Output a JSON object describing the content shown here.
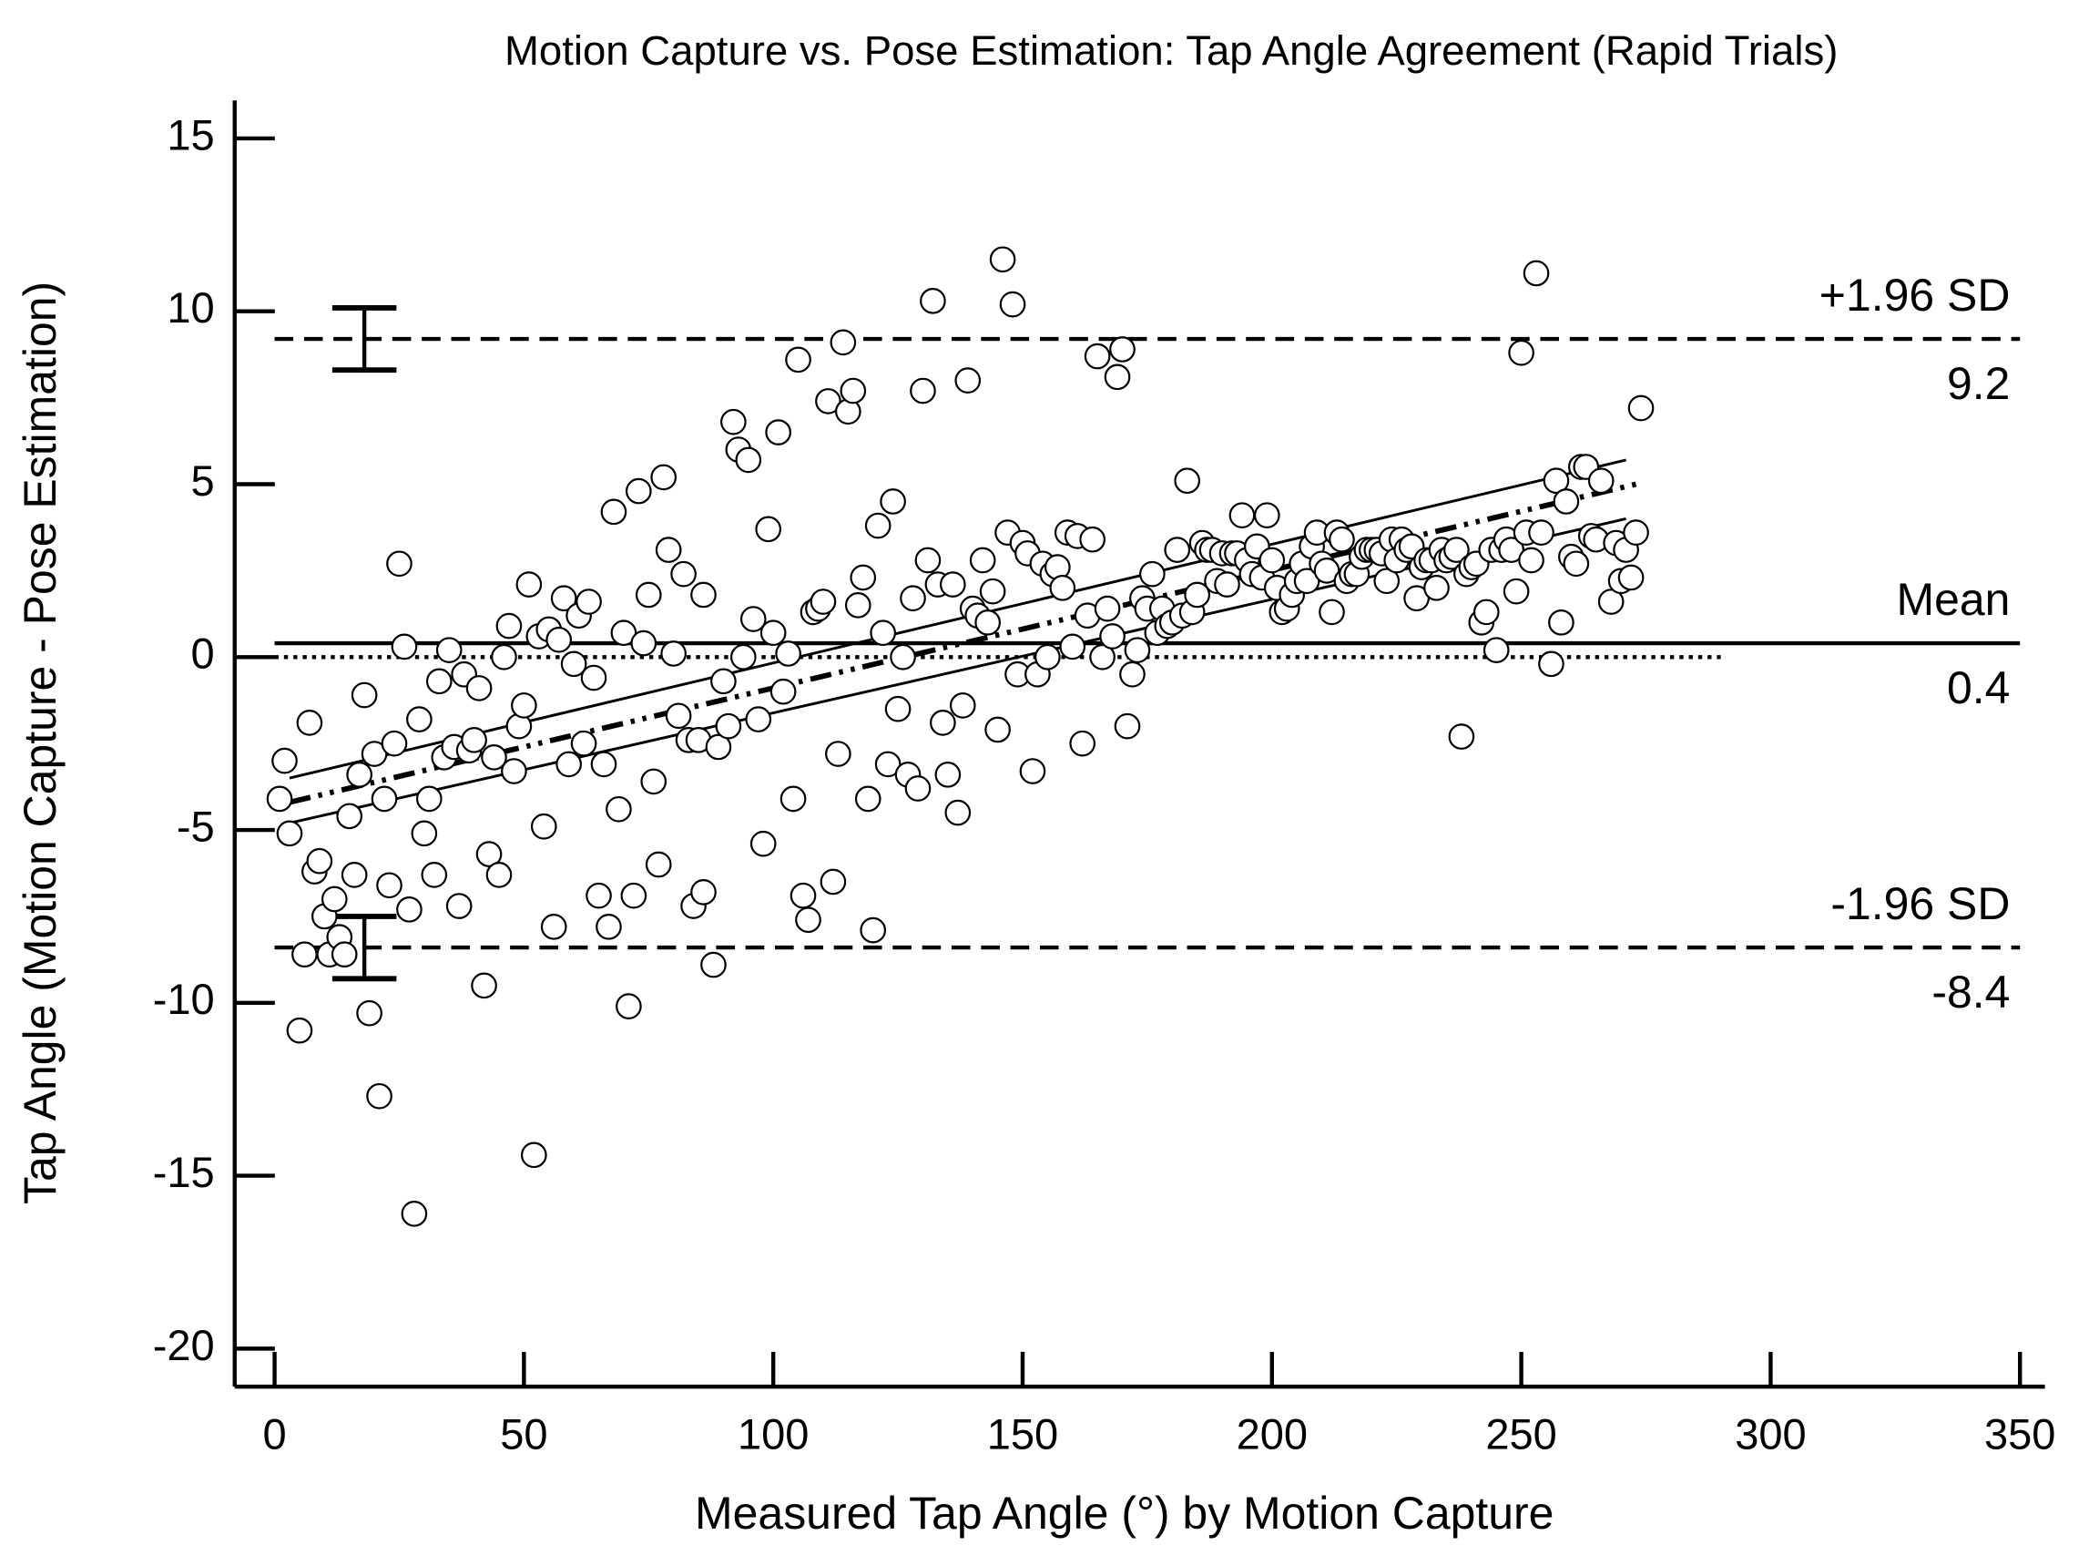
{
  "chart_data": {
    "type": "scatter",
    "title": "Motion Capture vs. Pose Estimation: Tap Angle Agreement (Rapid Trials)",
    "xlabel": "Measured Tap Angle (°) by Motion Capture",
    "ylabel": "Tap Angle (Motion Capture - Pose Estimation)",
    "xlim": [
      -8,
      355
    ],
    "ylim": [
      -21.1,
      16.1
    ],
    "xticks": [
      0,
      50,
      100,
      150,
      200,
      250,
      300,
      350
    ],
    "yticks": [
      -20,
      -15,
      -10,
      -5,
      0,
      5,
      10,
      15
    ],
    "marker_color": "#ffffff",
    "marker_edge": "#000000",
    "x": [
      1,
      2,
      3,
      5,
      6,
      7,
      8,
      9,
      10,
      11,
      12,
      13,
      14,
      15,
      16,
      17,
      18,
      19,
      20,
      21,
      22,
      23,
      24,
      25,
      26,
      27,
      28,
      29,
      30,
      31,
      32,
      33,
      34,
      35,
      36,
      37,
      38,
      39,
      40,
      41,
      42,
      43,
      44,
      45,
      46,
      47,
      48,
      49,
      50,
      51,
      52,
      53,
      54,
      55,
      56,
      57,
      58,
      59,
      60,
      61,
      62,
      63,
      64,
      65,
      66,
      67,
      68,
      69,
      70,
      71,
      72,
      73,
      74,
      75,
      76,
      77,
      78,
      79,
      80,
      81,
      82,
      83,
      84,
      85,
      86,
      86,
      88,
      89,
      90,
      91,
      92,
      93,
      94,
      95,
      96,
      97,
      98,
      99,
      100,
      101,
      102,
      103,
      104,
      105,
      106,
      107,
      108,
      109,
      110,
      111,
      112,
      113,
      114,
      115,
      116,
      117,
      118,
      119,
      120,
      121,
      122,
      123,
      124,
      125,
      126,
      127,
      128,
      129,
      130,
      131,
      132,
      133,
      134,
      135,
      136,
      137,
      138,
      139,
      140,
      141,
      142,
      143,
      144,
      145,
      146,
      147,
      148,
      149,
      150,
      151,
      152,
      153,
      154,
      155,
      156,
      157,
      158,
      159,
      160,
      161,
      162,
      163,
      164,
      165,
      166,
      167,
      168,
      169,
      170,
      171,
      172,
      173,
      174,
      175,
      176,
      177,
      178,
      179,
      180,
      181,
      182,
      183,
      184,
      185,
      186,
      187,
      188,
      189,
      190,
      191,
      192,
      193,
      194,
      195,
      196,
      197,
      198,
      199,
      200,
      201,
      202,
      203,
      204,
      205,
      206,
      207,
      208,
      209,
      210,
      211,
      212,
      213,
      214,
      215,
      216,
      217,
      218,
      219,
      220,
      221,
      222,
      223,
      224,
      225,
      226,
      227,
      228,
      229,
      230,
      231,
      232,
      233,
      234,
      235,
      236,
      237,
      238,
      239,
      240,
      241,
      242,
      243,
      244,
      245,
      246,
      247,
      248,
      249,
      250,
      251,
      252,
      253,
      254,
      256,
      257,
      258,
      259,
      260,
      261,
      262,
      263,
      264,
      265,
      266,
      268,
      269,
      270,
      271,
      272,
      273,
      274
    ],
    "values": [
      -4.1,
      -3.0,
      -5.1,
      -10.8,
      -8.6,
      -1.9,
      -6.2,
      -5.9,
      -7.5,
      -8.6,
      -7.0,
      -8.1,
      -8.6,
      -4.6,
      -6.3,
      -3.4,
      -1.1,
      -10.3,
      -2.8,
      -12.7,
      -4.1,
      -6.6,
      -2.5,
      2.7,
      0.3,
      -7.3,
      -16.1,
      -1.8,
      -5.1,
      -4.1,
      -6.3,
      -0.7,
      -2.9,
      0.2,
      -2.6,
      -7.2,
      -0.5,
      -2.7,
      -2.4,
      -0.9,
      -9.5,
      -5.7,
      -2.9,
      -6.3,
      0,
      0.9,
      -3.3,
      -2.0,
      -1.4,
      2.1,
      -14.4,
      0.6,
      -4.9,
      0.8,
      -7.8,
      0.5,
      1.7,
      -3.1,
      -0.2,
      1.2,
      -2.5,
      1.6,
      -0.6,
      -6.9,
      -3.1,
      -7.8,
      4.2,
      -4.4,
      0.7,
      -10.1,
      -6.9,
      4.8,
      0.4,
      1.8,
      -3.6,
      -6.0,
      5.2,
      3.1,
      0.1,
      -1.7,
      2.4,
      -2.4,
      -7.2,
      -2.4,
      -6.8,
      1.8,
      -8.9,
      -2.6,
      -0.7,
      -2.0,
      6.8,
      6.0,
      0,
      5.7,
      1.1,
      -1.8,
      -5.4,
      3.7,
      0.7,
      6.5,
      -1.0,
      0.1,
      -4.1,
      8.6,
      -6.9,
      -7.6,
      1.3,
      1.4,
      1.6,
      7.4,
      -6.5,
      -2.8,
      9.1,
      7.1,
      7.7,
      1.5,
      2.3,
      -4.1,
      -7.9,
      3.8,
      0.7,
      -3.1,
      4.5,
      -1.5,
      0.0,
      -3.4,
      1.7,
      -3.8,
      7.7,
      2.8,
      10.3,
      2.1,
      -1.9,
      -3.4,
      2.1,
      -4.5,
      -1.4,
      8.0,
      1.4,
      1.2,
      2.8,
      1.0,
      1.9,
      -2.1,
      11.5,
      3.6,
      10.2,
      -0.5,
      3.3,
      3.0,
      -3.3,
      -0.5,
      2.7,
      0.0,
      2.4,
      2.6,
      2.0,
      3.6,
      0.3,
      3.5,
      -2.5,
      1.2,
      3.4,
      8.7,
      0.0,
      1.4,
      0.6,
      8.1,
      8.9,
      -2.0,
      -0.5,
      0.2,
      1.7,
      1.4,
      2.4,
      0.7,
      1.4,
      0.9,
      1.0,
      3.1,
      1.2,
      5.1,
      1.3,
      1.8,
      3.3,
      3.1,
      3.1,
      2.2,
      3.0,
      2.1,
      3.0,
      3.0,
      4.1,
      2.8,
      2.4,
      3.2,
      2.3,
      4.1,
      2.8,
      2.0,
      1.3,
      1.4,
      1.8,
      2.2,
      2.7,
      2.2,
      3.2,
      3.6,
      2.7,
      2.5,
      1.3,
      3.6,
      3.4,
      2.2,
      2.4,
      2.4,
      2.9,
      3.1,
      3.1,
      3.1,
      3.0,
      2.2,
      3.4,
      2.8,
      3.4,
      3.1,
      3.2,
      1.7,
      2.6,
      2.8,
      2.8,
      2.0,
      3.1,
      2.8,
      2.9,
      3.1,
      -2.3,
      2.4,
      2.6,
      2.7,
      1.0,
      1.3,
      3.1,
      0.2,
      3.1,
      3.4,
      3.1,
      1.9,
      8.8,
      3.6,
      2.8,
      11.1,
      3.6,
      -0.2,
      5.1,
      1.0,
      4.5,
      2.9,
      2.7,
      5.5,
      5.5,
      3.5,
      3.4,
      5.1,
      1.6,
      3.3,
      2.2,
      3.1,
      2.3,
      3.6,
      7.2
    ],
    "reference_lines": [
      {
        "label": "+1.96 SD",
        "value": 9.2,
        "style": "dashed",
        "x_range": [
          0,
          350
        ]
      },
      {
        "label": "Mean",
        "value": 0.4,
        "style": "solid",
        "x_range": [
          0,
          350
        ]
      },
      {
        "label": "-1.96 SD",
        "value": -8.4,
        "style": "dashed",
        "x_range": [
          0,
          350
        ]
      }
    ],
    "zero_line": {
      "value": 0,
      "style": "dotted",
      "x_range": [
        0,
        290
      ]
    },
    "regression": {
      "x": [
        3,
        273
      ],
      "values": [
        -4.2,
        5.0
      ]
    },
    "confidence_upper": {
      "x": [
        3,
        271
      ],
      "values": [
        -3.5,
        5.7
      ]
    },
    "confidence_lower": {
      "x": [
        3,
        271
      ],
      "values": [
        -4.8,
        4.0
      ]
    },
    "error_bars": [
      {
        "x": 18,
        "value": 9.2,
        "low": 8.3,
        "high": 10.1
      },
      {
        "x": 18,
        "value": -8.4,
        "low": -9.3,
        "high": -7.5
      }
    ]
  }
}
